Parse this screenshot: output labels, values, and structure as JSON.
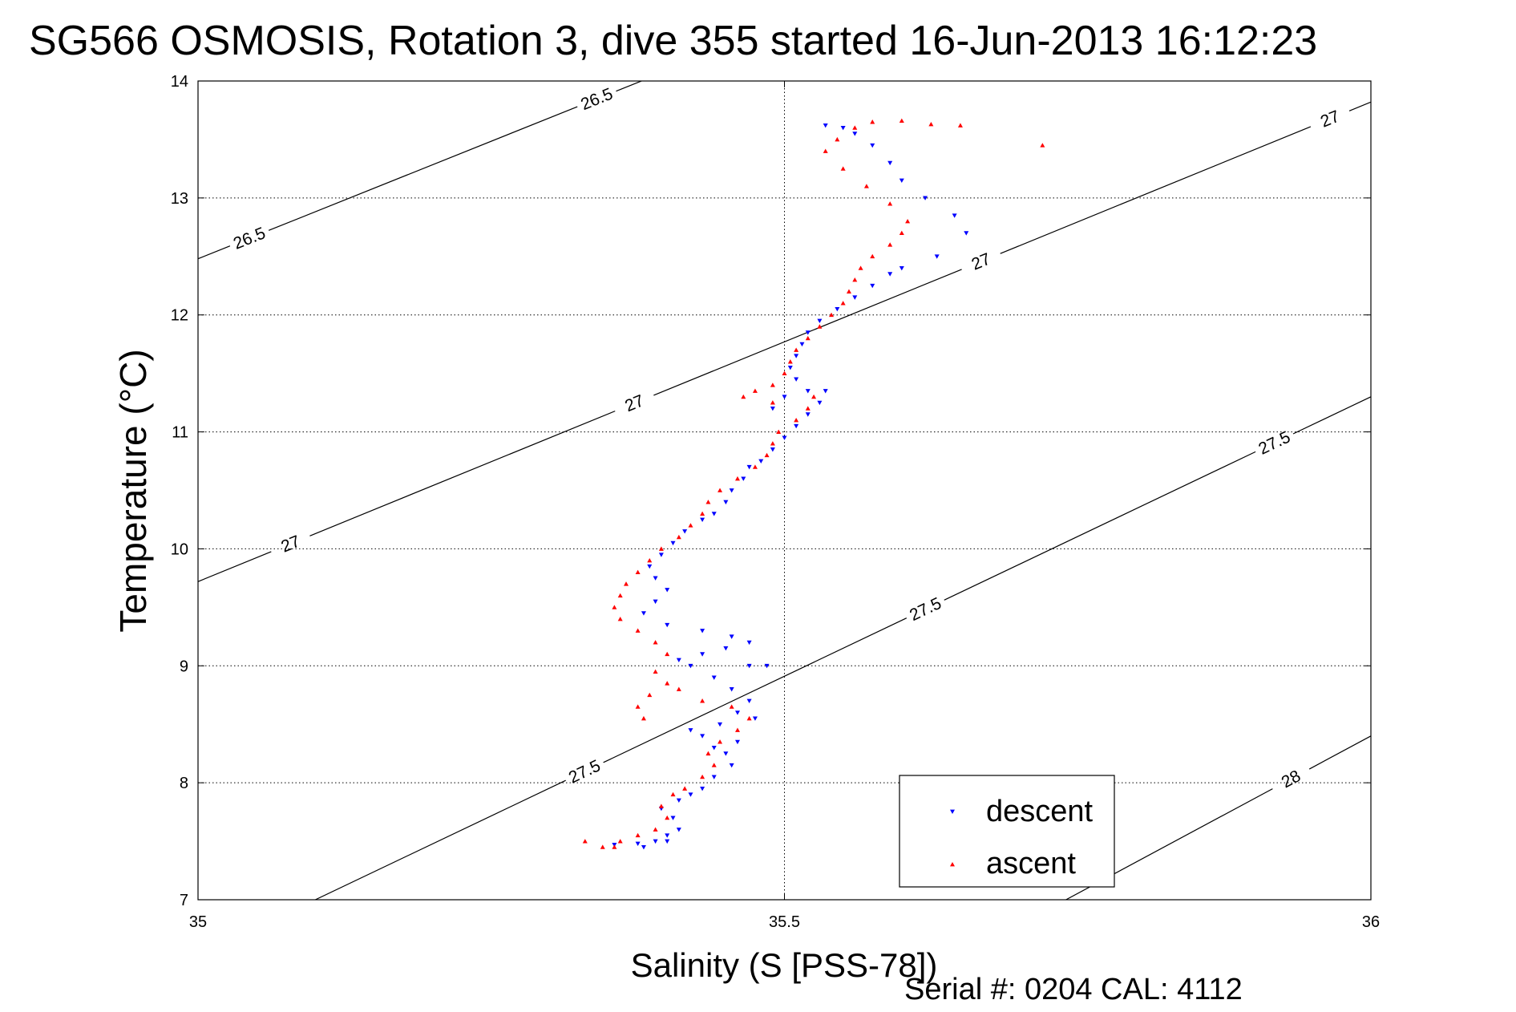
{
  "chart_data": {
    "type": "scatter",
    "title": "SG566 OSMOSIS, Rotation 3, dive 355 started 16-Jun-2013 16:12:23",
    "xlabel": "Salinity (S [PSS-78])",
    "ylabel": "Temperature (°C)",
    "xlim": [
      35,
      36
    ],
    "ylim": [
      7,
      14
    ],
    "x_ticks": [
      35,
      35.5,
      36
    ],
    "x_tick_labels": [
      "35",
      "35.5",
      "36"
    ],
    "y_ticks": [
      7,
      8,
      9,
      10,
      11,
      12,
      13,
      14
    ],
    "y_tick_labels": [
      "7",
      "8",
      "9",
      "10",
      "11",
      "12",
      "13",
      "14"
    ],
    "grid": true,
    "legend": {
      "position": "bottom-right",
      "entries": [
        "descent",
        "ascent"
      ]
    },
    "colors": {
      "descent": "#0000ff",
      "ascent": "#ff0000"
    },
    "density_contours": [
      {
        "level": "26.5",
        "points": [
          [
            35.0,
            12.48
          ],
          [
            36.0,
            16.5
          ]
        ],
        "labels_at": [
          [
            35.046,
            12.6
          ],
          [
            35.345,
            13.72
          ]
        ]
      },
      {
        "level": "27",
        "points": [
          [
            35.0,
            9.72
          ],
          [
            36.0,
            13.82
          ]
        ],
        "labels_at": [
          [
            35.079,
            10.04
          ],
          [
            35.369,
            11.32
          ],
          [
            35.665,
            12.52
          ],
          [
            35.965,
            13.68
          ]
        ]
      },
      {
        "level": "27.5",
        "points": [
          [
            35.1,
            7.0
          ],
          [
            36.0,
            11.3
          ]
        ],
        "labels_at": [
          [
            35.337,
            7.94
          ],
          [
            35.628,
            9.32
          ],
          [
            35.918,
            10.9
          ]
        ]
      },
      {
        "level": "28",
        "points": [
          [
            35.74,
            7.0
          ],
          [
            36.0,
            8.4
          ]
        ],
        "labels_at": [
          [
            35.932,
            8.03
          ]
        ]
      }
    ],
    "series": [
      {
        "name": "descent",
        "marker": "triangle-down",
        "points": [
          [
            35.355,
            7.47
          ],
          [
            35.375,
            7.48
          ],
          [
            35.39,
            7.5
          ],
          [
            35.4,
            7.55
          ],
          [
            35.41,
            7.6
          ],
          [
            35.405,
            7.7
          ],
          [
            35.395,
            7.78
          ],
          [
            35.41,
            7.85
          ],
          [
            35.42,
            7.9
          ],
          [
            35.43,
            7.95
          ],
          [
            35.44,
            8.05
          ],
          [
            35.455,
            8.15
          ],
          [
            35.45,
            8.25
          ],
          [
            35.44,
            8.3
          ],
          [
            35.43,
            8.4
          ],
          [
            35.445,
            8.5
          ],
          [
            35.46,
            8.6
          ],
          [
            35.47,
            8.7
          ],
          [
            35.455,
            8.8
          ],
          [
            35.44,
            8.9
          ],
          [
            35.42,
            9.0
          ],
          [
            35.41,
            9.05
          ],
          [
            35.43,
            9.1
          ],
          [
            35.45,
            9.15
          ],
          [
            35.47,
            9.2
          ],
          [
            35.455,
            9.25
          ],
          [
            35.43,
            9.3
          ],
          [
            35.4,
            9.35
          ],
          [
            35.38,
            9.45
          ],
          [
            35.39,
            9.55
          ],
          [
            35.4,
            9.65
          ],
          [
            35.39,
            9.75
          ],
          [
            35.385,
            9.85
          ],
          [
            35.395,
            9.95
          ],
          [
            35.405,
            10.05
          ],
          [
            35.415,
            10.15
          ],
          [
            35.43,
            10.25
          ],
          [
            35.44,
            10.3
          ],
          [
            35.45,
            10.4
          ],
          [
            35.455,
            10.5
          ],
          [
            35.465,
            10.6
          ],
          [
            35.47,
            10.7
          ],
          [
            35.48,
            10.75
          ],
          [
            35.49,
            10.85
          ],
          [
            35.5,
            10.95
          ],
          [
            35.51,
            11.05
          ],
          [
            35.52,
            11.15
          ],
          [
            35.53,
            11.25
          ],
          [
            35.52,
            11.35
          ],
          [
            35.51,
            11.45
          ],
          [
            35.505,
            11.55
          ],
          [
            35.51,
            11.65
          ],
          [
            35.515,
            11.75
          ],
          [
            35.52,
            11.85
          ],
          [
            35.53,
            11.95
          ],
          [
            35.545,
            12.05
          ],
          [
            35.56,
            12.15
          ],
          [
            35.575,
            12.25
          ],
          [
            35.59,
            12.35
          ],
          [
            35.6,
            12.4
          ],
          [
            35.63,
            12.5
          ],
          [
            35.655,
            12.7
          ],
          [
            35.645,
            12.85
          ],
          [
            35.62,
            13.0
          ],
          [
            35.6,
            13.15
          ],
          [
            35.59,
            13.3
          ],
          [
            35.575,
            13.45
          ],
          [
            35.56,
            13.55
          ],
          [
            35.55,
            13.6
          ],
          [
            35.535,
            13.62
          ],
          [
            35.47,
            9.0
          ],
          [
            35.46,
            8.35
          ],
          [
            35.475,
            8.55
          ],
          [
            35.42,
            8.45
          ],
          [
            35.485,
            9.0
          ],
          [
            35.38,
            7.45
          ],
          [
            35.4,
            7.5
          ],
          [
            35.5,
            11.3
          ],
          [
            35.535,
            11.35
          ],
          [
            35.49,
            11.2
          ]
        ]
      },
      {
        "name": "ascent",
        "marker": "triangle-up",
        "points": [
          [
            35.345,
            7.45
          ],
          [
            35.36,
            7.5
          ],
          [
            35.375,
            7.55
          ],
          [
            35.39,
            7.6
          ],
          [
            35.4,
            7.7
          ],
          [
            35.395,
            7.8
          ],
          [
            35.405,
            7.9
          ],
          [
            35.415,
            7.95
          ],
          [
            35.43,
            8.05
          ],
          [
            35.44,
            8.15
          ],
          [
            35.435,
            8.25
          ],
          [
            35.445,
            8.35
          ],
          [
            35.46,
            8.45
          ],
          [
            35.47,
            8.55
          ],
          [
            35.455,
            8.65
          ],
          [
            35.43,
            8.7
          ],
          [
            35.41,
            8.8
          ],
          [
            35.4,
            8.85
          ],
          [
            35.385,
            8.75
          ],
          [
            35.375,
            8.65
          ],
          [
            35.38,
            8.55
          ],
          [
            35.39,
            8.95
          ],
          [
            35.4,
            9.1
          ],
          [
            35.39,
            9.2
          ],
          [
            35.375,
            9.3
          ],
          [
            35.36,
            9.4
          ],
          [
            35.355,
            9.5
          ],
          [
            35.36,
            9.6
          ],
          [
            35.365,
            9.7
          ],
          [
            35.375,
            9.8
          ],
          [
            35.385,
            9.9
          ],
          [
            35.395,
            10.0
          ],
          [
            35.41,
            10.1
          ],
          [
            35.42,
            10.2
          ],
          [
            35.43,
            10.3
          ],
          [
            35.435,
            10.4
          ],
          [
            35.445,
            10.5
          ],
          [
            35.46,
            10.6
          ],
          [
            35.475,
            10.7
          ],
          [
            35.485,
            10.8
          ],
          [
            35.49,
            10.9
          ],
          [
            35.495,
            11.0
          ],
          [
            35.51,
            11.1
          ],
          [
            35.52,
            11.2
          ],
          [
            35.525,
            11.3
          ],
          [
            35.49,
            11.25
          ],
          [
            35.465,
            11.3
          ],
          [
            35.475,
            11.35
          ],
          [
            35.49,
            11.4
          ],
          [
            35.5,
            11.5
          ],
          [
            35.505,
            11.6
          ],
          [
            35.51,
            11.7
          ],
          [
            35.52,
            11.8
          ],
          [
            35.53,
            11.9
          ],
          [
            35.54,
            12.0
          ],
          [
            35.55,
            12.1
          ],
          [
            35.555,
            12.2
          ],
          [
            35.56,
            12.3
          ],
          [
            35.565,
            12.4
          ],
          [
            35.575,
            12.5
          ],
          [
            35.59,
            12.6
          ],
          [
            35.6,
            12.7
          ],
          [
            35.605,
            12.8
          ],
          [
            35.59,
            12.95
          ],
          [
            35.57,
            13.1
          ],
          [
            35.55,
            13.25
          ],
          [
            35.535,
            13.4
          ],
          [
            35.545,
            13.5
          ],
          [
            35.56,
            13.6
          ],
          [
            35.575,
            13.65
          ],
          [
            35.6,
            13.66
          ],
          [
            35.625,
            13.63
          ],
          [
            35.65,
            13.62
          ],
          [
            35.72,
            13.45
          ],
          [
            35.33,
            7.5
          ],
          [
            35.355,
            7.45
          ]
        ]
      }
    ]
  },
  "footer": {
    "serial_text": "Serial #: 0204  CAL: 4112"
  }
}
